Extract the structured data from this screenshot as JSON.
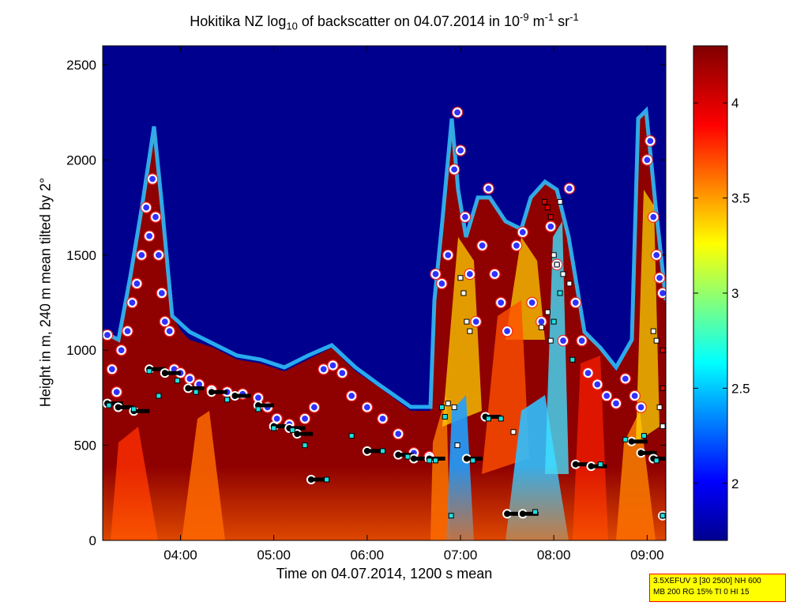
{
  "chart_data": {
    "type": "heatmap",
    "title_parts": {
      "pre": "Hokitika NZ log",
      "sub": "10",
      "mid": " of backscatter on 04.07.2014 in 10",
      "sup1": "-9",
      "mid2": " m",
      "sup2": "-1",
      "mid3": " sr",
      "sup3": "-1"
    },
    "xlabel": "Time on 04.07.2014, 1200 s mean",
    "ylabel": "Height in m, 240 m mean tilted by 2°",
    "x_range": [
      "03:10",
      "09:12"
    ],
    "y_range": [
      0,
      2600
    ],
    "x_ticks": [
      "04:00",
      "05:00",
      "06:00",
      "07:00",
      "08:00",
      "09:00"
    ],
    "y_ticks": [
      0,
      500,
      1000,
      1500,
      2000,
      2500
    ],
    "colorbar": {
      "range": [
        1.7,
        4.3
      ],
      "ticks": [
        2,
        2.5,
        3,
        3.5,
        4
      ],
      "colormap": "jet"
    },
    "background_color": "#00008f",
    "series": [
      {
        "marker": "red-white-blue circle",
        "points": [
          [
            "03:13",
            1080
          ],
          [
            "03:16",
            900
          ],
          [
            "03:19",
            780
          ],
          [
            "03:22",
            1000
          ],
          [
            "03:26",
            1100
          ],
          [
            "03:29",
            1250
          ],
          [
            "03:32",
            1350
          ],
          [
            "03:35",
            1500
          ],
          [
            "03:38",
            1750
          ],
          [
            "03:40",
            1600
          ],
          [
            "03:42",
            1900
          ],
          [
            "03:44",
            1700
          ],
          [
            "03:46",
            1500
          ],
          [
            "03:48",
            1300
          ],
          [
            "03:50",
            1150
          ],
          [
            "03:53",
            1100
          ],
          [
            "03:56",
            900
          ],
          [
            "04:00",
            880
          ],
          [
            "04:06",
            850
          ],
          [
            "04:12",
            820
          ],
          [
            "04:20",
            790
          ],
          [
            "04:30",
            780
          ],
          [
            "04:40",
            770
          ],
          [
            "04:50",
            750
          ],
          [
            "04:56",
            700
          ],
          [
            "05:02",
            640
          ],
          [
            "05:10",
            610
          ],
          [
            "05:20",
            640
          ],
          [
            "05:26",
            700
          ],
          [
            "05:32",
            900
          ],
          [
            "05:38",
            920
          ],
          [
            "05:44",
            880
          ],
          [
            "05:50",
            760
          ],
          [
            "06:00",
            700
          ],
          [
            "06:10",
            640
          ],
          [
            "06:20",
            560
          ],
          [
            "06:30",
            460
          ],
          [
            "06:40",
            440
          ],
          [
            "06:44",
            1400
          ],
          [
            "06:48",
            1350
          ],
          [
            "06:52",
            1500
          ],
          [
            "06:56",
            1950
          ],
          [
            "06:58",
            2250
          ],
          [
            "07:00",
            2050
          ],
          [
            "07:03",
            1700
          ],
          [
            "07:06",
            1400
          ],
          [
            "07:10",
            1150
          ],
          [
            "07:14",
            1550
          ],
          [
            "07:18",
            1850
          ],
          [
            "07:22",
            1400
          ],
          [
            "07:26",
            1250
          ],
          [
            "07:30",
            1100
          ],
          [
            "07:36",
            1550
          ],
          [
            "07:40",
            1620
          ],
          [
            "07:46",
            1250
          ],
          [
            "07:52",
            1150
          ],
          [
            "07:58",
            1650
          ],
          [
            "08:02",
            1450
          ],
          [
            "08:06",
            1050
          ],
          [
            "08:10",
            1850
          ],
          [
            "08:14",
            1250
          ],
          [
            "08:18",
            1050
          ],
          [
            "08:22",
            880
          ],
          [
            "08:28",
            820
          ],
          [
            "08:34",
            760
          ],
          [
            "08:40",
            720
          ],
          [
            "08:46",
            850
          ],
          [
            "08:52",
            760
          ],
          [
            "08:56",
            700
          ],
          [
            "09:00",
            2000
          ],
          [
            "09:02",
            2100
          ],
          [
            "09:04",
            1700
          ],
          [
            "09:06",
            1500
          ],
          [
            "09:08",
            1380
          ],
          [
            "09:10",
            1300
          ]
        ]
      },
      {
        "marker": "black-white circle",
        "points": [
          [
            "03:13",
            720
          ],
          [
            "03:20",
            700
          ],
          [
            "03:30",
            680
          ],
          [
            "03:40",
            900
          ],
          [
            "03:50",
            880
          ],
          [
            "04:05",
            800
          ],
          [
            "04:20",
            780
          ],
          [
            "04:35",
            760
          ],
          [
            "04:50",
            710
          ],
          [
            "05:00",
            600
          ],
          [
            "05:10",
            590
          ],
          [
            "05:15",
            560
          ],
          [
            "05:24",
            320
          ],
          [
            "06:00",
            470
          ],
          [
            "06:20",
            450
          ],
          [
            "06:30",
            430
          ],
          [
            "06:40",
            430
          ],
          [
            "07:04",
            430
          ],
          [
            "07:16",
            650
          ],
          [
            "07:30",
            140
          ],
          [
            "07:40",
            140
          ],
          [
            "08:14",
            400
          ],
          [
            "08:24",
            390
          ],
          [
            "08:50",
            520
          ],
          [
            "08:56",
            460
          ],
          [
            "09:04",
            430
          ],
          [
            "09:10",
            130
          ]
        ]
      },
      {
        "marker": "cyan square",
        "points": [
          [
            "03:14",
            710
          ],
          [
            "03:30",
            690
          ],
          [
            "03:40",
            890
          ],
          [
            "03:46",
            760
          ],
          [
            "03:58",
            840
          ],
          [
            "04:10",
            780
          ],
          [
            "04:30",
            740
          ],
          [
            "04:50",
            690
          ],
          [
            "05:00",
            590
          ],
          [
            "05:12",
            580
          ],
          [
            "05:20",
            500
          ],
          [
            "05:34",
            320
          ],
          [
            "05:50",
            550
          ],
          [
            "06:10",
            470
          ],
          [
            "06:26",
            440
          ],
          [
            "06:40",
            420
          ],
          [
            "06:44",
            420
          ],
          [
            "06:48",
            700
          ],
          [
            "06:50",
            650
          ],
          [
            "06:54",
            130
          ],
          [
            "07:08",
            420
          ],
          [
            "07:18",
            640
          ],
          [
            "07:26",
            640
          ],
          [
            "07:48",
            150
          ],
          [
            "08:00",
            1150
          ],
          [
            "08:04",
            1300
          ],
          [
            "08:12",
            950
          ],
          [
            "08:30",
            400
          ],
          [
            "08:46",
            530
          ],
          [
            "08:58",
            550
          ],
          [
            "09:06",
            420
          ],
          [
            "09:10",
            130
          ]
        ]
      },
      {
        "marker": "white square",
        "points": [
          [
            "06:52",
            720
          ],
          [
            "06:56",
            700
          ],
          [
            "06:58",
            500
          ],
          [
            "07:00",
            1380
          ],
          [
            "07:02",
            1300
          ],
          [
            "07:04",
            1150
          ],
          [
            "07:06",
            1100
          ],
          [
            "07:34",
            570
          ],
          [
            "07:52",
            1120
          ],
          [
            "07:56",
            1200
          ],
          [
            "07:58",
            1050
          ],
          [
            "08:00",
            1500
          ],
          [
            "08:02",
            1450
          ],
          [
            "08:04",
            1780
          ],
          [
            "08:06",
            1400
          ],
          [
            "08:10",
            1350
          ],
          [
            "09:04",
            1100
          ],
          [
            "09:06",
            1050
          ],
          [
            "09:08",
            700
          ],
          [
            "09:10",
            600
          ]
        ]
      },
      {
        "marker": "red square",
        "points": [
          [
            "07:54",
            1780
          ],
          [
            "07:56",
            1750
          ],
          [
            "07:58",
            1700
          ],
          [
            "09:10",
            1000
          ],
          [
            "09:10",
            800
          ]
        ]
      }
    ]
  },
  "info_box": {
    "line1": "3.5XEFUV 3 [30 2500] NH 600",
    "line2": "MB 200 RG 15% TI 0 HI 15"
  }
}
